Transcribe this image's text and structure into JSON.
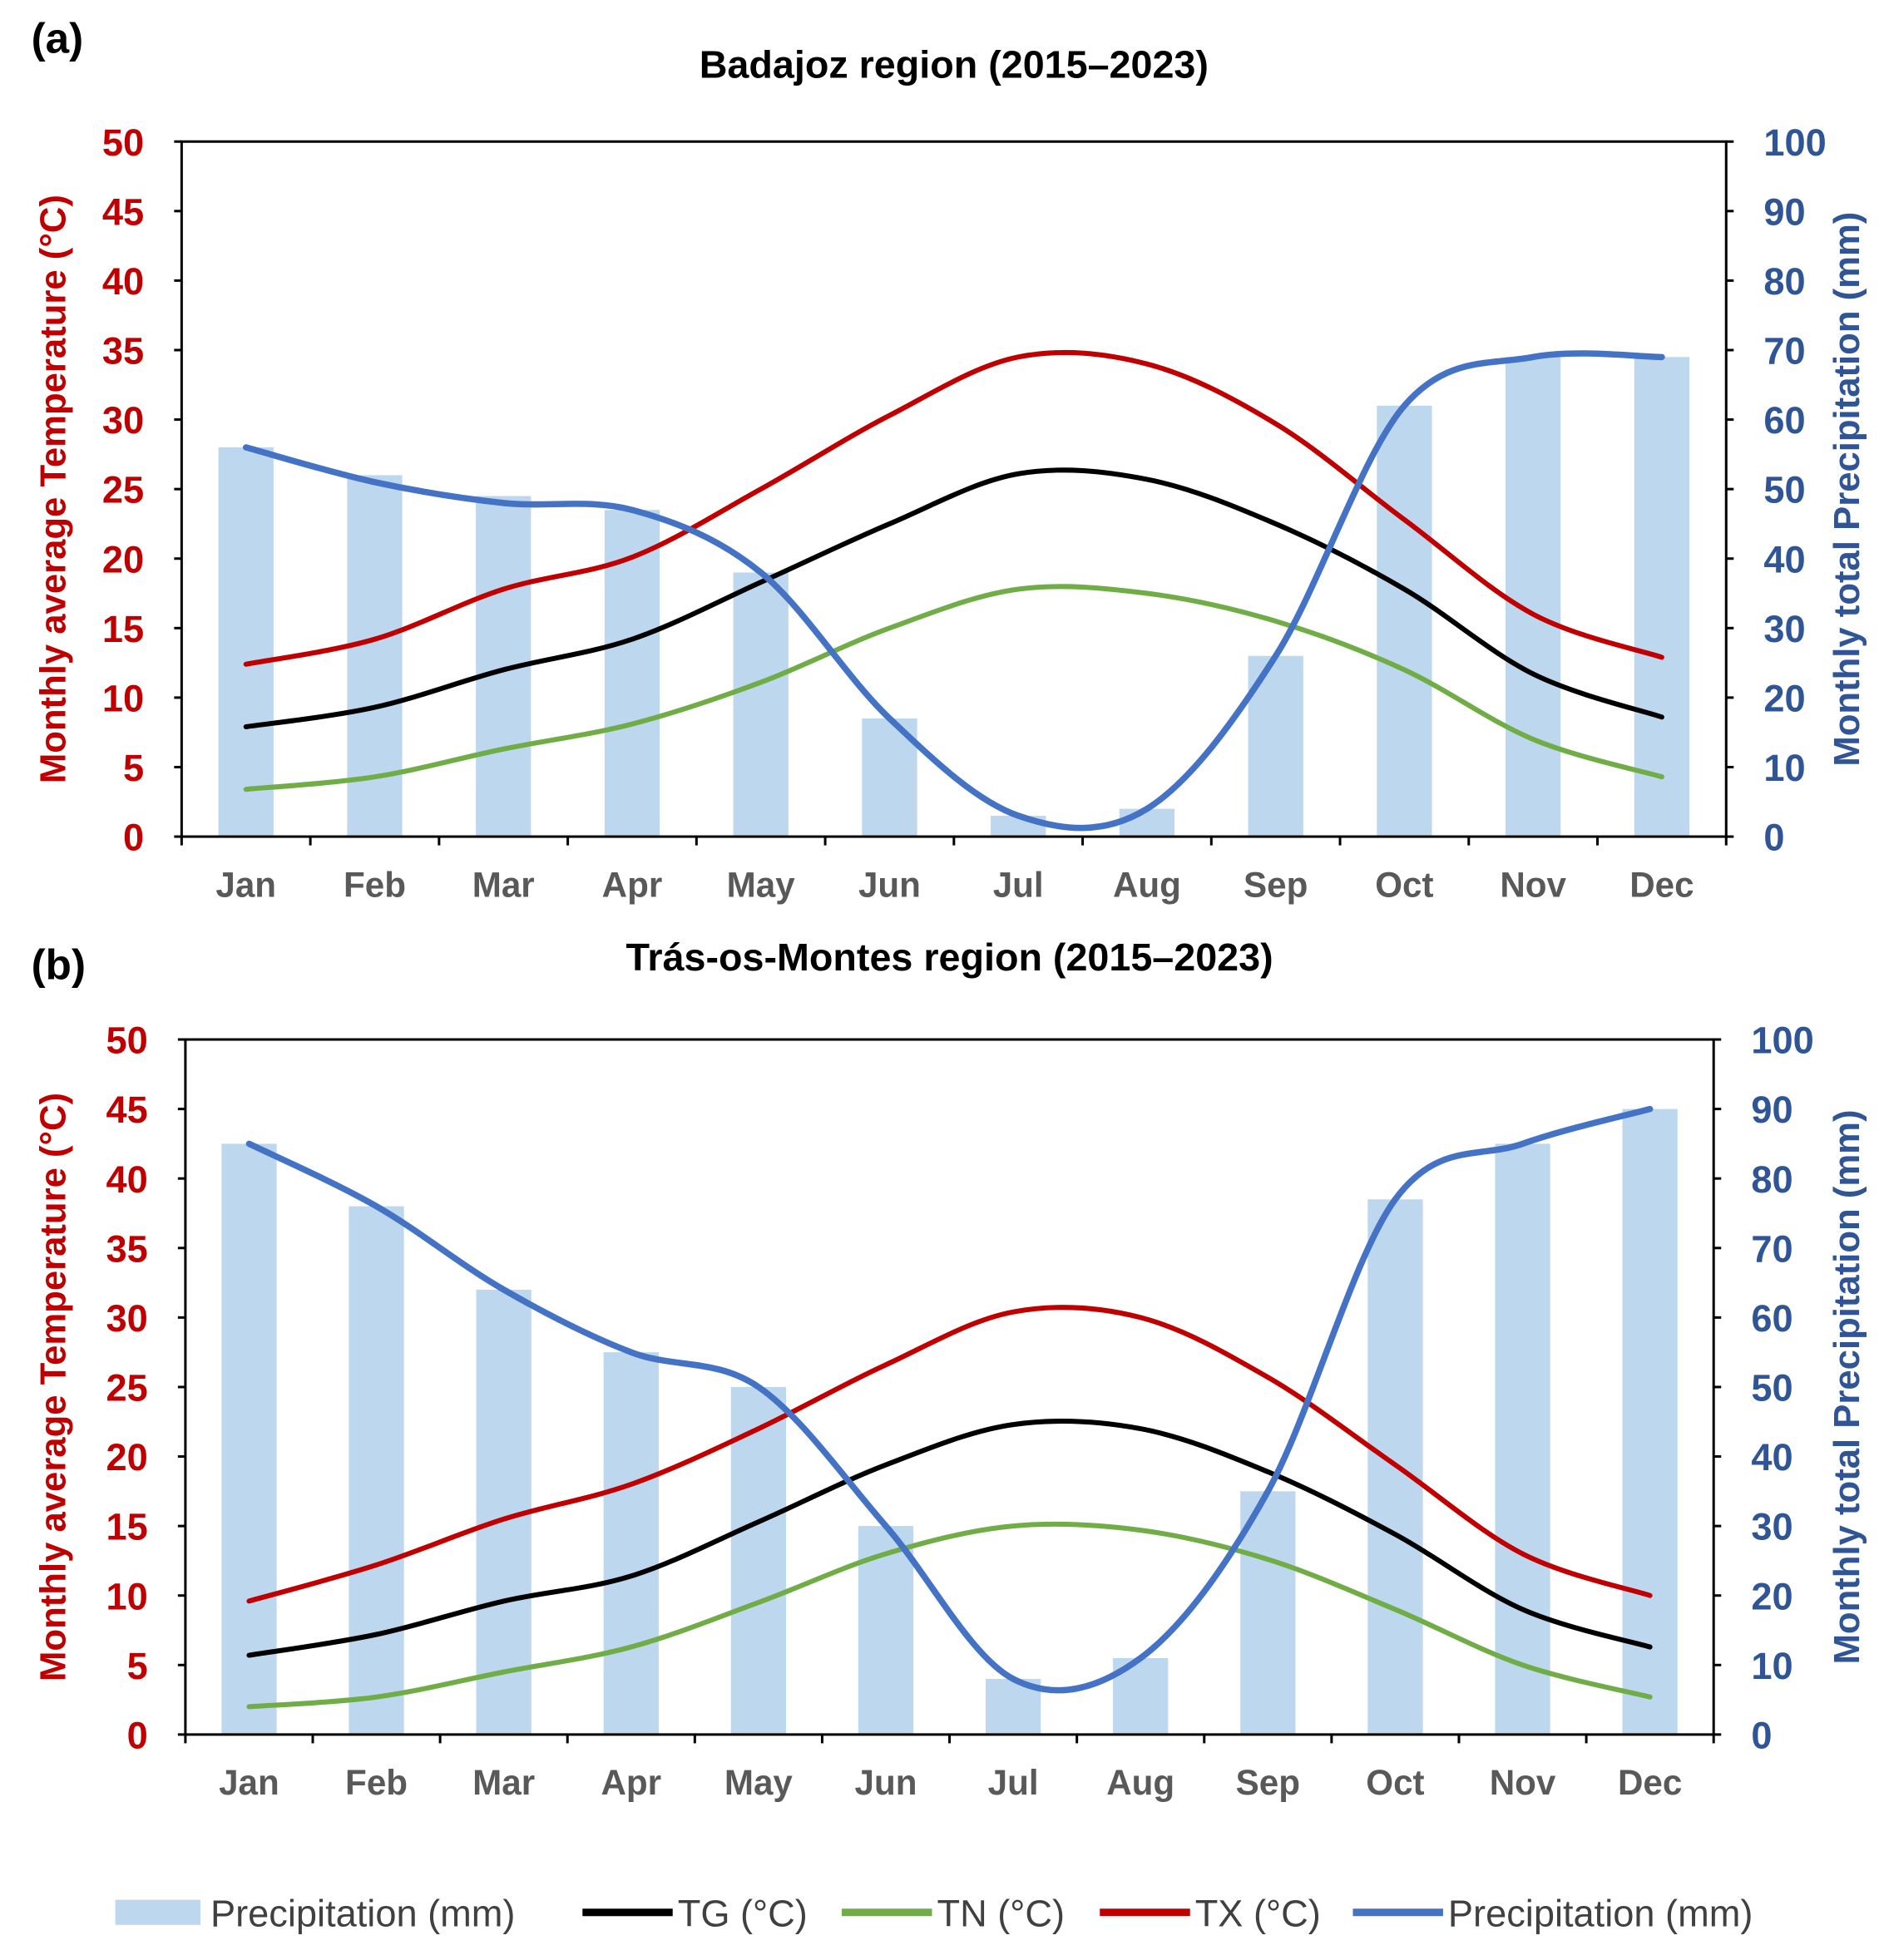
{
  "chart_data": [
    {
      "panel_label": "(a)",
      "type": "bar+line",
      "title": "Badajoz region (2015–2023)",
      "categories": [
        "Jan",
        "Feb",
        "Mar",
        "Apr",
        "May",
        "Jun",
        "Jul",
        "Aug",
        "Sep",
        "Oct",
        "Nov",
        "Dec"
      ],
      "ylabel": "Monthly average Temperature (°C)",
      "y2label": "Monthly total Precipitation (mm)",
      "ylim": [
        0,
        50
      ],
      "yticks": [
        0,
        5,
        10,
        15,
        20,
        25,
        30,
        35,
        40,
        45,
        50
      ],
      "y2lim": [
        0,
        100
      ],
      "y2ticks": [
        0,
        10,
        20,
        30,
        40,
        50,
        60,
        70,
        80,
        90,
        100
      ],
      "series": [
        {
          "name": "Precipitation (mm)",
          "kind": "bar",
          "axis": "right",
          "values": [
            56,
            52,
            49,
            47,
            38,
            17,
            3,
            4,
            26,
            62,
            69,
            69
          ]
        },
        {
          "name": "TG (°C)",
          "kind": "line",
          "axis": "left",
          "values": [
            7.9,
            9.3,
            12.0,
            14.2,
            18.3,
            22.5,
            26.1,
            25.7,
            22.5,
            17.8,
            11.7,
            8.6
          ]
        },
        {
          "name": "TN (°C)",
          "kind": "line",
          "axis": "left",
          "values": [
            3.4,
            4.3,
            6.3,
            8.1,
            11.1,
            15.0,
            17.8,
            17.5,
            15.5,
            12.0,
            7.0,
            4.3
          ]
        },
        {
          "name": "TX (°C)",
          "kind": "line",
          "axis": "left",
          "values": [
            12.4,
            14.2,
            17.8,
            20.1,
            25.0,
            30.3,
            34.5,
            34.0,
            29.7,
            22.8,
            16.0,
            12.9
          ]
        },
        {
          "name": "Precipitation (mm)",
          "kind": "line",
          "axis": "right",
          "values": [
            56,
            51,
            48,
            47,
            38,
            17,
            3,
            4,
            26,
            62,
            69,
            69
          ]
        }
      ]
    },
    {
      "panel_label": "(b)",
      "type": "bar+line",
      "title": "Trás-os-Montes region (2015–2023)",
      "categories": [
        "Jan",
        "Feb",
        "Mar",
        "Apr",
        "May",
        "Jun",
        "Jul",
        "Aug",
        "Sep",
        "Oct",
        "Nov",
        "Dec"
      ],
      "ylabel": "Monthly average Temperature (°C)",
      "y2label": "Monthly total Precipitation (mm)",
      "ylim": [
        0,
        50
      ],
      "yticks": [
        0,
        5,
        10,
        15,
        20,
        25,
        30,
        35,
        40,
        45,
        50
      ],
      "y2lim": [
        0,
        100
      ],
      "y2ticks": [
        0,
        10,
        20,
        30,
        40,
        50,
        60,
        70,
        80,
        90,
        100
      ],
      "series": [
        {
          "name": "Precipitation (mm)",
          "kind": "bar",
          "axis": "right",
          "values": [
            85,
            76,
            64,
            55,
            50,
            30,
            8,
            11,
            35,
            77,
            85,
            90
          ]
        },
        {
          "name": "TG (°C)",
          "kind": "line",
          "axis": "left",
          "values": [
            5.7,
            7.2,
            9.6,
            11.4,
            15.3,
            19.4,
            22.3,
            22.0,
            18.9,
            14.4,
            9.0,
            6.3
          ]
        },
        {
          "name": "TN (°C)",
          "kind": "line",
          "axis": "left",
          "values": [
            2.0,
            2.7,
            4.5,
            6.3,
            9.5,
            13.0,
            15.0,
            14.7,
            12.6,
            9.0,
            5.0,
            2.7
          ]
        },
        {
          "name": "TX (°C)",
          "kind": "line",
          "axis": "left",
          "values": [
            9.6,
            12.2,
            15.5,
            18.0,
            22.0,
            26.6,
            30.4,
            30.0,
            25.7,
            19.4,
            13.0,
            10.0
          ]
        },
        {
          "name": "Precipitation (mm)",
          "kind": "line",
          "axis": "right",
          "values": [
            85,
            76,
            64,
            55,
            50,
            30,
            8,
            11,
            35,
            77,
            85,
            90
          ]
        }
      ]
    }
  ],
  "legend": {
    "placement": "bottom",
    "items": [
      {
        "label": "Precipitation (mm)",
        "kind": "bar",
        "color": "#bdd7ee"
      },
      {
        "label": "TG (°C)",
        "kind": "line",
        "color": "#000000"
      },
      {
        "label": "TN (°C)",
        "kind": "line",
        "color": "#70ad47"
      },
      {
        "label": "TX (°C)",
        "kind": "line",
        "color": "#c00000"
      },
      {
        "label": "Precipitation (mm)",
        "kind": "line",
        "color": "#4472c4"
      }
    ]
  },
  "colors": {
    "left_axis": "#c00000",
    "right_axis": "#2f5597",
    "bar": "#bdd7ee",
    "TG": "#000000",
    "TN": "#70ad47",
    "TX": "#c00000",
    "precip_line": "#4472c4"
  }
}
